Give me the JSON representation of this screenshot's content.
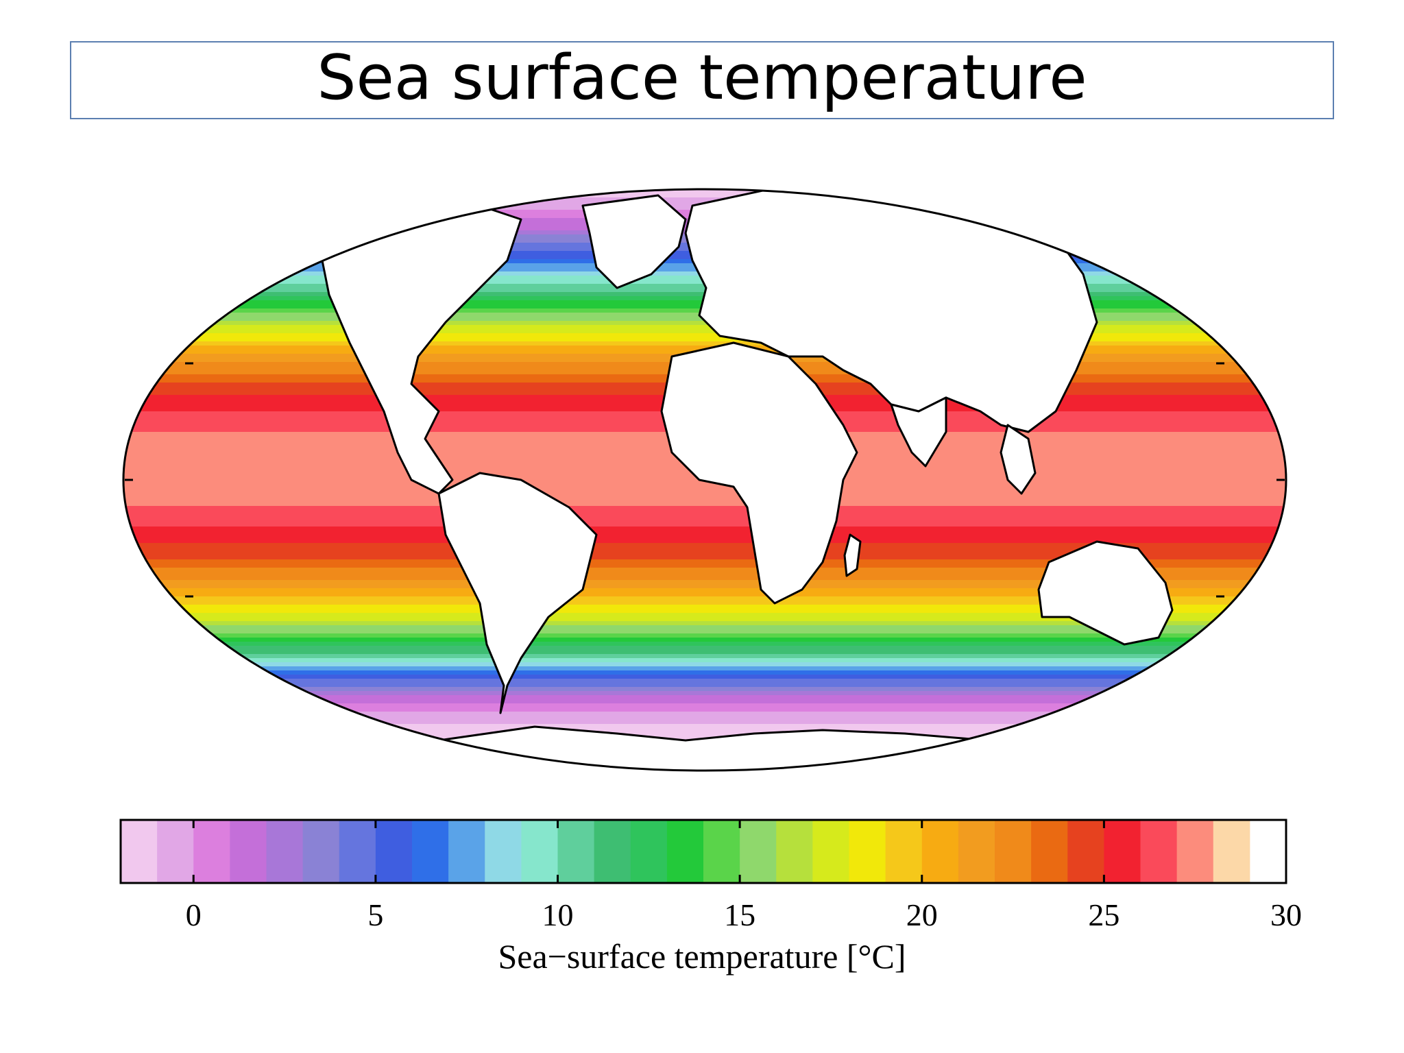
{
  "title": "Sea surface temperature",
  "colorbar": {
    "label": "Sea−surface temperature [°C]",
    "min": -2,
    "max": 30,
    "step": 1,
    "ticks": [
      "0",
      "5",
      "10",
      "15",
      "20",
      "25",
      "30"
    ],
    "tick_values": [
      0,
      5,
      10,
      15,
      20,
      25,
      30
    ],
    "colors": [
      "#f1c8ee",
      "#e1a7e6",
      "#dc7fde",
      "#c46fd9",
      "#a877d8",
      "#8a82d5",
      "#6575de",
      "#3f5ee0",
      "#2f6fe8",
      "#5aa3e8",
      "#8fd9e6",
      "#86e6cc",
      "#5fcf9c",
      "#3ebe72",
      "#2fc45c",
      "#23c93a",
      "#5ad44a",
      "#8fd86c",
      "#b6e03c",
      "#d6ea1c",
      "#f1e80a",
      "#f5c81a",
      "#f7ab12",
      "#f29c1f",
      "#f08a1a",
      "#ea6a12",
      "#e6421f",
      "#f22230",
      "#fa4a5a",
      "#fc8c7c",
      "#fcd8a8"
    ]
  },
  "map": {
    "projection": "mollweide",
    "land_color": "#ffffff",
    "coast_color": "#000000",
    "sst_by_latitude": [
      {
        "lat": 85,
        "sst": -1.5
      },
      {
        "lat": 70,
        "sst": 2
      },
      {
        "lat": 60,
        "sst": 6
      },
      {
        "lat": 50,
        "sst": 11
      },
      {
        "lat": 40,
        "sst": 17
      },
      {
        "lat": 30,
        "sst": 22
      },
      {
        "lat": 20,
        "sst": 25.5
      },
      {
        "lat": 10,
        "sst": 27.5
      },
      {
        "lat": 0,
        "sst": 28
      },
      {
        "lat": -10,
        "sst": 26.5
      },
      {
        "lat": -20,
        "sst": 24
      },
      {
        "lat": -30,
        "sst": 20
      },
      {
        "lat": -40,
        "sst": 15
      },
      {
        "lat": -50,
        "sst": 7
      },
      {
        "lat": -60,
        "sst": 1
      },
      {
        "lat": -70,
        "sst": -1.5
      },
      {
        "lat": -85,
        "sst": -1.8
      }
    ]
  }
}
